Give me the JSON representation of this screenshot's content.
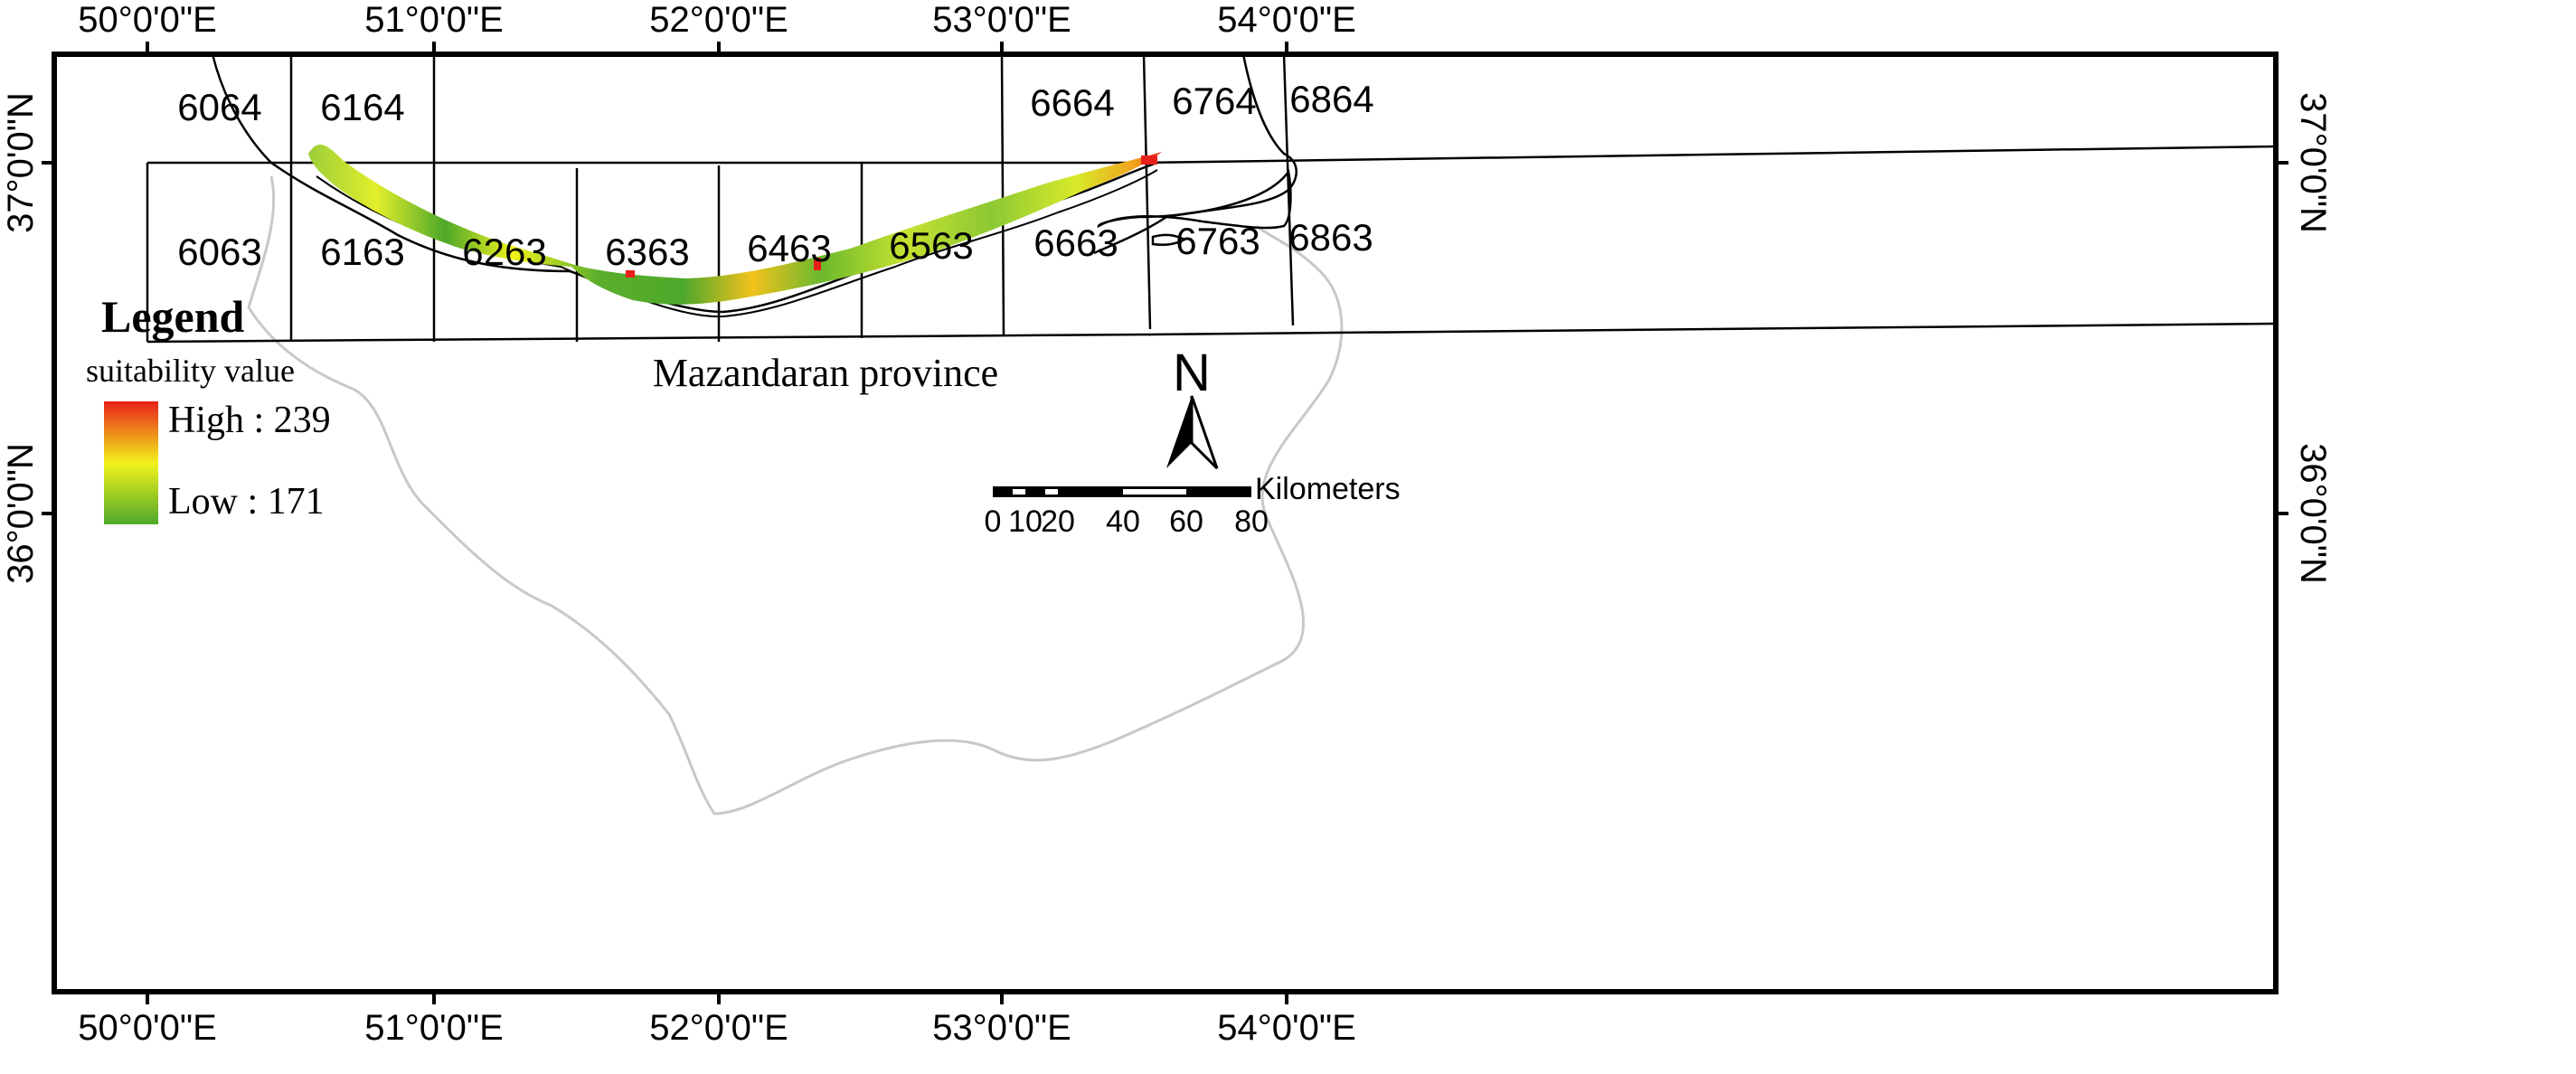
{
  "graticule": {
    "top_lon_labels": [
      "50°0'0\"E",
      "51°0'0\"E",
      "52°0'0\"E",
      "53°0'0\"E",
      "54°0'0\"E"
    ],
    "bottom_lon_labels": [
      "50°0'0\"E",
      "51°0'0\"E",
      "52°0'0\"E",
      "53°0'0\"E",
      "54°0'0\"E"
    ],
    "left_lat_labels": [
      "37°0'0\"N",
      "36°0'0\"N"
    ],
    "right_lat_labels": [
      "37°0'0\"N",
      "36°0'0\"N"
    ]
  },
  "tiles": {
    "top_row": [
      "6064",
      "6164",
      "6664",
      "6764",
      "6864"
    ],
    "bottom_row": [
      "6063",
      "6163",
      "6263",
      "6363",
      "6463",
      "6563",
      "6663",
      "6763",
      "6863"
    ]
  },
  "province_label": "Mazandaran province",
  "legend": {
    "title": "Legend",
    "subtitle": "suitability value",
    "high_label": "High : 239",
    "low_label": "Low : 171",
    "colors": {
      "high": "#e8201a",
      "mid": "#f2f21c",
      "low": "#4ea82a"
    }
  },
  "north_arrow": {
    "label": "N"
  },
  "scale_bar": {
    "unit": "Kilometers",
    "ticks": [
      "0",
      "10",
      "20",
      "40",
      "60",
      "80"
    ]
  },
  "colors": {
    "frame": "#000000",
    "province_boundary": "#c8c8c8",
    "suitability_high": "#e8201a",
    "suitability_mid": "#f2f21c",
    "suitability_low": "#4ea82a"
  }
}
